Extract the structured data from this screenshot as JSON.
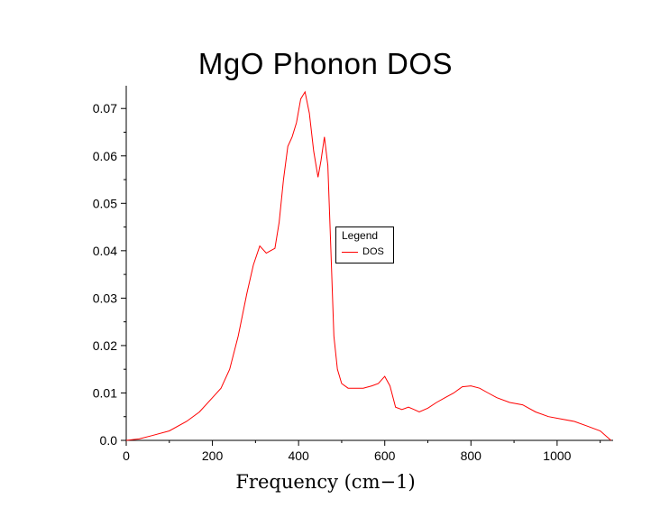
{
  "chart_data": {
    "type": "line",
    "title": "MgO Phonon DOS",
    "xlabel": "Frequency (cm−1)",
    "ylabel": "",
    "xlim": [
      0,
      1130
    ],
    "ylim": [
      0,
      0.0748
    ],
    "xticks": [
      0,
      200,
      400,
      600,
      800,
      1000
    ],
    "xtick_labels": [
      "0",
      "200",
      "400",
      "600",
      "800",
      "1000"
    ],
    "xminor": [
      100,
      300,
      500,
      700,
      900,
      1100
    ],
    "yticks": [
      0,
      0.01,
      0.02,
      0.03,
      0.04,
      0.05,
      0.06,
      0.07
    ],
    "ytick_labels": [
      "0.0",
      "0.01",
      "0.02",
      "0.03",
      "0.04",
      "0.05",
      "0.06",
      "0.07"
    ],
    "yminor": [
      0.005,
      0.015,
      0.025,
      0.035,
      0.045,
      0.055,
      0.065
    ],
    "grid": false,
    "axis_color": "#000000",
    "legend": {
      "title": "Legend",
      "position": "middle-right-of-plot",
      "entries": [
        {
          "label": "DOS",
          "color": "#ff0000"
        }
      ]
    },
    "series": [
      {
        "name": "DOS",
        "color": "#ff0000",
        "x": [
          0,
          30,
          60,
          100,
          140,
          170,
          200,
          220,
          240,
          260,
          280,
          295,
          310,
          325,
          335,
          345,
          355,
          365,
          375,
          385,
          395,
          405,
          415,
          425,
          435,
          445,
          452,
          460,
          468,
          475,
          482,
          490,
          500,
          515,
          530,
          550,
          570,
          585,
          600,
          612,
          625,
          640,
          655,
          668,
          680,
          700,
          720,
          740,
          760,
          780,
          800,
          820,
          840,
          860,
          890,
          920,
          950,
          980,
          1010,
          1040,
          1070,
          1100,
          1125
        ],
        "y": [
          0,
          0.0003,
          0.001,
          0.002,
          0.004,
          0.006,
          0.009,
          0.011,
          0.015,
          0.022,
          0.031,
          0.037,
          0.041,
          0.0395,
          0.04,
          0.0405,
          0.046,
          0.055,
          0.062,
          0.064,
          0.067,
          0.072,
          0.0735,
          0.069,
          0.061,
          0.0555,
          0.059,
          0.064,
          0.058,
          0.04,
          0.022,
          0.015,
          0.012,
          0.011,
          0.011,
          0.011,
          0.0115,
          0.012,
          0.0135,
          0.0115,
          0.007,
          0.0065,
          0.007,
          0.0065,
          0.006,
          0.0068,
          0.008,
          0.009,
          0.01,
          0.0113,
          0.0115,
          0.011,
          0.01,
          0.009,
          0.008,
          0.0075,
          0.006,
          0.005,
          0.0045,
          0.004,
          0.003,
          0.002,
          0
        ]
      }
    ]
  }
}
